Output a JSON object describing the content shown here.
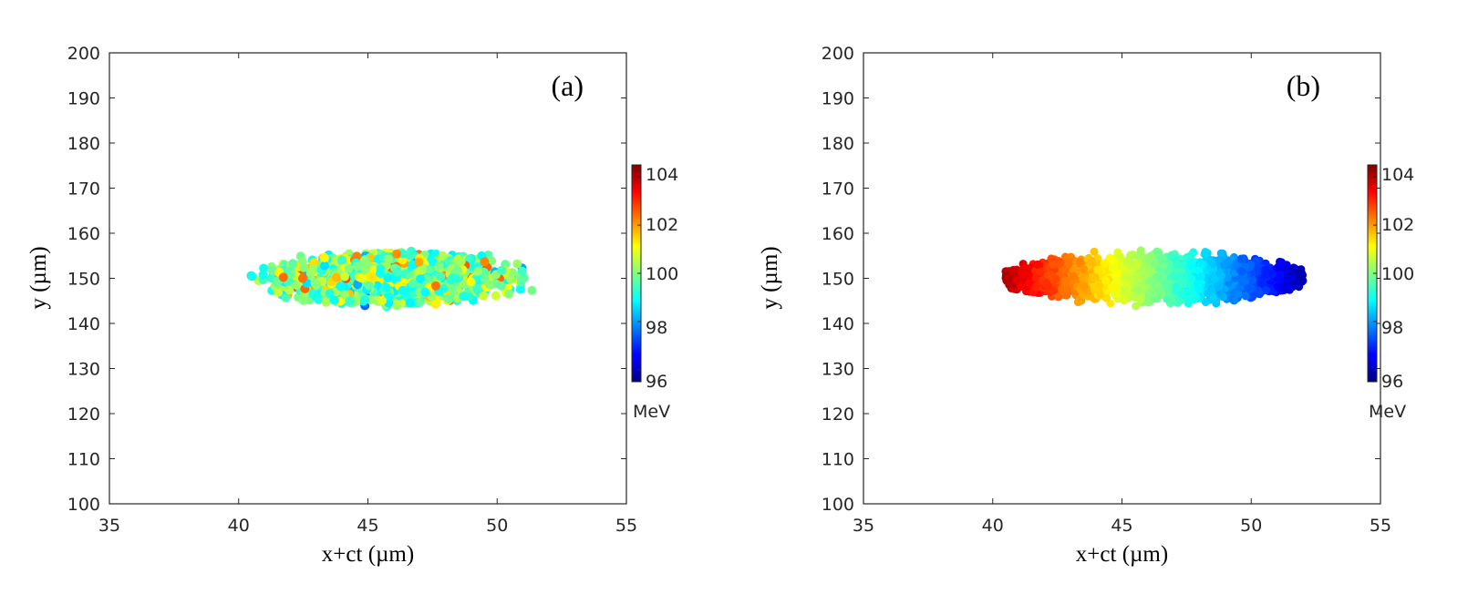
{
  "chart_data": [
    {
      "type": "scatter",
      "panel_label": "(a)",
      "coloring": "random",
      "xlabel": "x+ct (µm)",
      "ylabel": "y (µm)",
      "xlim": [
        35,
        55
      ],
      "ylim": [
        100,
        200
      ],
      "xticks": [
        "35",
        "40",
        "45",
        "50",
        "55"
      ],
      "yticks": [
        "100",
        "110",
        "120",
        "130",
        "140",
        "150",
        "160",
        "170",
        "180",
        "190",
        "200"
      ],
      "cloud": {
        "x_range": [
          40,
          52
        ],
        "y_center": 150,
        "y_half_width_max": 6.5
      },
      "colorbar": {
        "unit": "MeV",
        "clim": [
          95.5,
          104.5
        ],
        "ticks": [
          "96",
          "98",
          "100",
          "102",
          "104"
        ],
        "colormap": "jet"
      }
    },
    {
      "type": "scatter",
      "panel_label": "(b)",
      "coloring": "by-x",
      "xlabel": "x+ct (µm)",
      "ylabel": "y (µm)",
      "xlim": [
        35,
        55
      ],
      "ylim": [
        100,
        200
      ],
      "xticks": [
        "35",
        "40",
        "45",
        "50",
        "55"
      ],
      "yticks": [
        "100",
        "110",
        "120",
        "130",
        "140",
        "150",
        "160",
        "170",
        "180",
        "190",
        "200"
      ],
      "cloud": {
        "x_range": [
          40.5,
          52
        ],
        "y_center": 150,
        "y_half_width_max": 6.5
      },
      "colorbar": {
        "unit": "MeV",
        "clim": [
          95.5,
          104.5
        ],
        "ticks": [
          "96",
          "98",
          "100",
          "102",
          "104"
        ],
        "colormap": "jet"
      }
    }
  ]
}
